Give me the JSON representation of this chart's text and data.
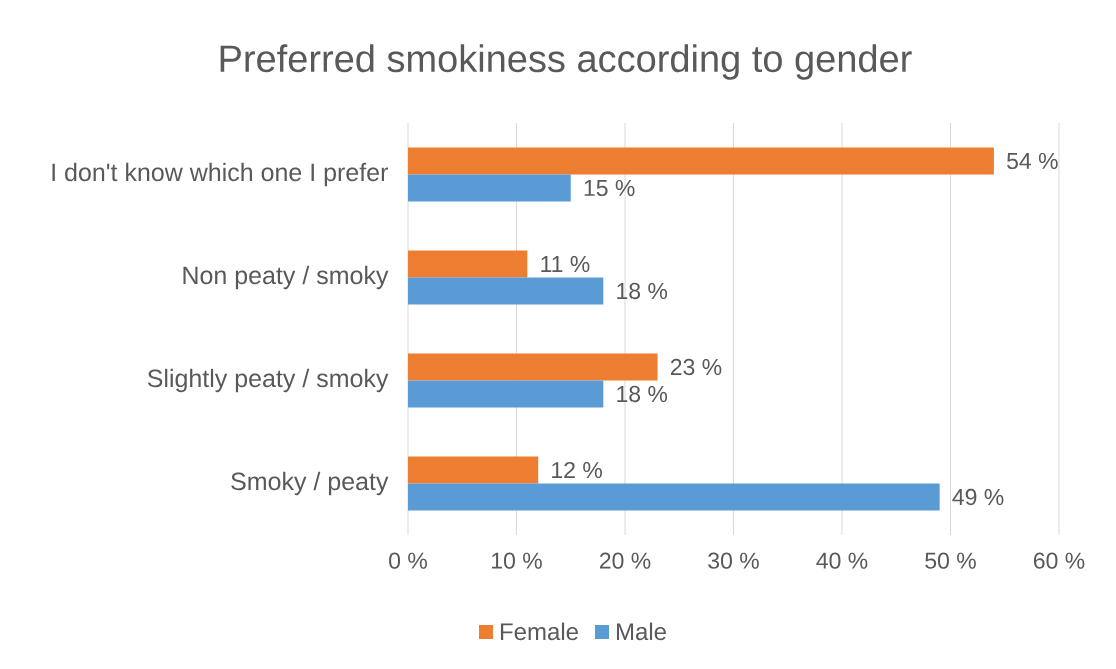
{
  "chart_data": {
    "type": "bar",
    "orientation": "horizontal",
    "title": "Preferred smokiness according to gender",
    "categories": [
      "I don't know which one I prefer",
      "Non peaty / smoky",
      "Slightly peaty / smoky",
      "Smoky / peaty"
    ],
    "series": [
      {
        "name": "Female",
        "color": "#ed7d31",
        "values": [
          54,
          11,
          23,
          12
        ],
        "value_labels": [
          "54 %",
          "11 %",
          "23 %",
          "12 %"
        ]
      },
      {
        "name": "Male",
        "color": "#5b9bd5",
        "values": [
          15,
          18,
          18,
          49
        ],
        "value_labels": [
          "15 %",
          "18 %",
          "18 %",
          "49 %"
        ]
      }
    ],
    "xlim": [
      0,
      60
    ],
    "xticks": [
      {
        "value": 0,
        "label": "0 %"
      },
      {
        "value": 10,
        "label": "10 %"
      },
      {
        "value": 20,
        "label": "20 %"
      },
      {
        "value": 30,
        "label": "30 %"
      },
      {
        "value": 40,
        "label": "40 %"
      },
      {
        "value": 50,
        "label": "50 %"
      },
      {
        "value": 60,
        "label": "60 %"
      }
    ],
    "grid": "x",
    "legend": "bottom"
  }
}
